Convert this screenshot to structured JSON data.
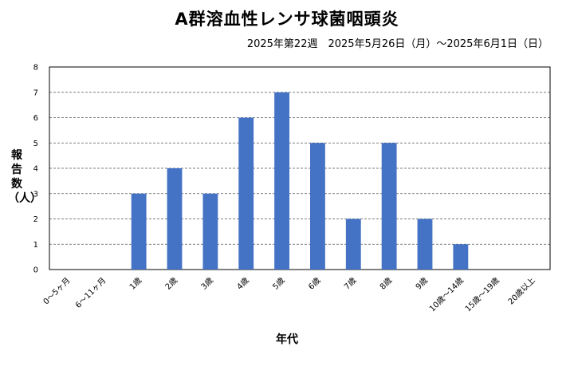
{
  "chart_data": {
    "type": "bar",
    "title": "A群溶血性レンサ球菌咽頭炎",
    "subtitle": "2025年第22週　2025年5月26日（月）～2025年6月1日（日）",
    "xlabel": "年代",
    "ylabel": "報告数（人）",
    "categories": [
      "0～5ヶ月",
      "6～11ヶ月",
      "1歳",
      "2歳",
      "3歳",
      "4歳",
      "5歳",
      "6歳",
      "7歳",
      "8歳",
      "9歳",
      "10歳～14歳",
      "15歳～19歳",
      "20歳以上"
    ],
    "values": [
      0,
      0,
      3,
      4,
      3,
      6,
      7,
      5,
      2,
      5,
      2,
      1,
      0,
      0
    ],
    "ylim": [
      0,
      8
    ],
    "yticks": [
      0,
      1,
      2,
      3,
      4,
      5,
      6,
      7,
      8
    ],
    "grid": true,
    "bar_color": "#4472C4"
  }
}
